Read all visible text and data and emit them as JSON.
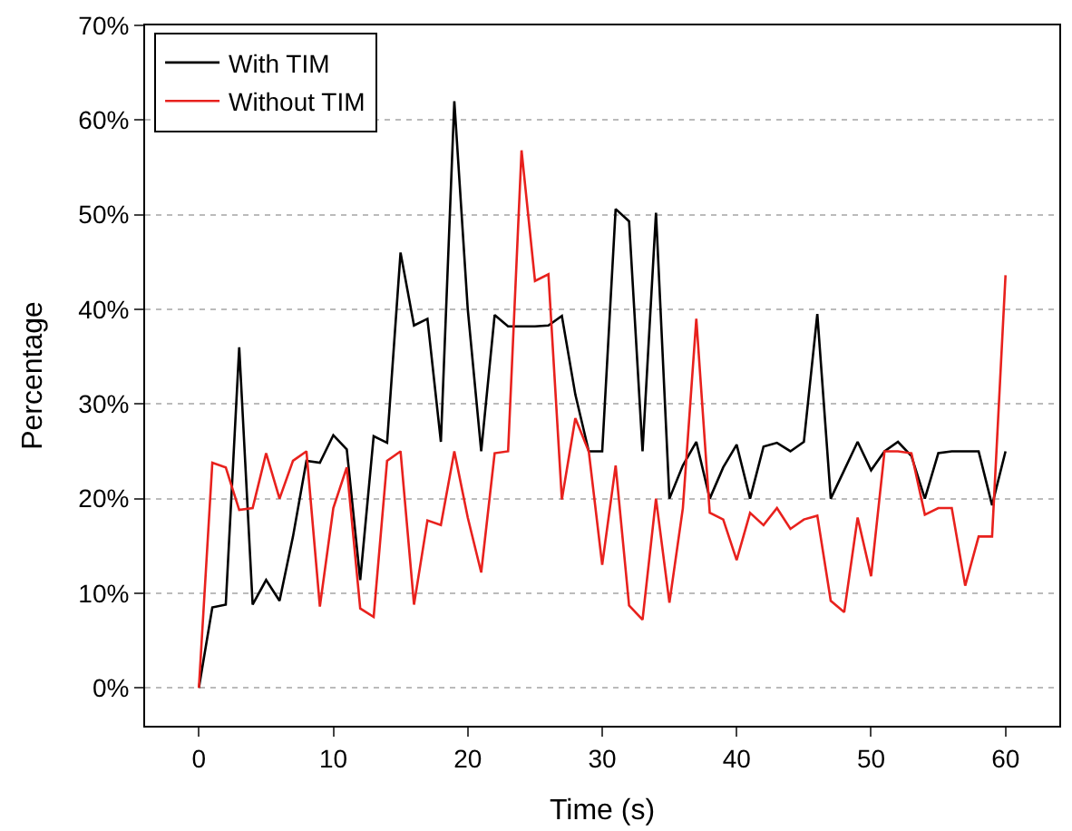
{
  "chart_data": {
    "type": "line",
    "xlabel": "Time (s)",
    "ylabel": "Percentage",
    "x": [
      0,
      1,
      2,
      3,
      4,
      5,
      6,
      7,
      8,
      9,
      10,
      11,
      12,
      13,
      14,
      15,
      16,
      17,
      18,
      19,
      20,
      21,
      22,
      23,
      24,
      25,
      26,
      27,
      28,
      29,
      30,
      31,
      32,
      33,
      34,
      35,
      36,
      37,
      38,
      39,
      40,
      41,
      42,
      43,
      44,
      45,
      46,
      47,
      48,
      49,
      50,
      51,
      52,
      53,
      54,
      55,
      56,
      57,
      58,
      59,
      60
    ],
    "series": [
      {
        "name": "With TIM",
        "color": "#000000",
        "values": [
          0,
          8.5,
          8.8,
          36,
          8.8,
          11.4,
          9.2,
          16,
          24,
          23.8,
          26.7,
          25.2,
          11.4,
          26.6,
          25.9,
          46,
          38.3,
          39,
          26,
          62,
          40,
          25,
          39.4,
          38.2,
          38.2,
          38.2,
          38.3,
          39.3,
          31,
          25,
          25,
          50.6,
          49.3,
          25,
          50.2,
          20,
          23.5,
          26,
          20,
          23.3,
          25.7,
          20,
          25.5,
          25.9,
          25,
          26,
          39.5,
          20,
          23,
          26,
          23,
          25,
          26,
          24.5,
          20,
          24.8,
          25,
          25,
          25,
          19.3,
          25
        ]
      },
      {
        "name": "Without TIM",
        "color": "#e8211d",
        "values": [
          0,
          23.8,
          23.3,
          18.8,
          19,
          24.8,
          20,
          24,
          25,
          8.6,
          19,
          23.3,
          8.4,
          7.5,
          24,
          25,
          8.8,
          17.7,
          17.2,
          25,
          18,
          12.2,
          24.8,
          25,
          56.8,
          43,
          43.7,
          19.9,
          28.5,
          25,
          13,
          23.5,
          8.7,
          7.2,
          20,
          9,
          19,
          39,
          18.5,
          17.8,
          13.5,
          18.5,
          17.2,
          19,
          16.8,
          17.8,
          18.2,
          9.2,
          8,
          18,
          11.8,
          25,
          25,
          24.8,
          18.3,
          19,
          19,
          10.8,
          16,
          16,
          43.6
        ]
      }
    ],
    "xlim": [
      -4,
      64
    ],
    "ylim": [
      -4,
      70
    ],
    "xticks": [
      0,
      10,
      20,
      30,
      40,
      50,
      60
    ],
    "yticks": [
      {
        "value": 0,
        "label": "0%"
      },
      {
        "value": 10,
        "label": "10%"
      },
      {
        "value": 20,
        "label": "20%"
      },
      {
        "value": 30,
        "label": "30%"
      },
      {
        "value": 40,
        "label": "40%"
      },
      {
        "value": 50,
        "label": "50%"
      },
      {
        "value": 60,
        "label": "60%"
      },
      {
        "value": 70,
        "label": "70%"
      }
    ],
    "grid": "y",
    "legend": "top left",
    "line_style": "solid",
    "marker": "none"
  }
}
